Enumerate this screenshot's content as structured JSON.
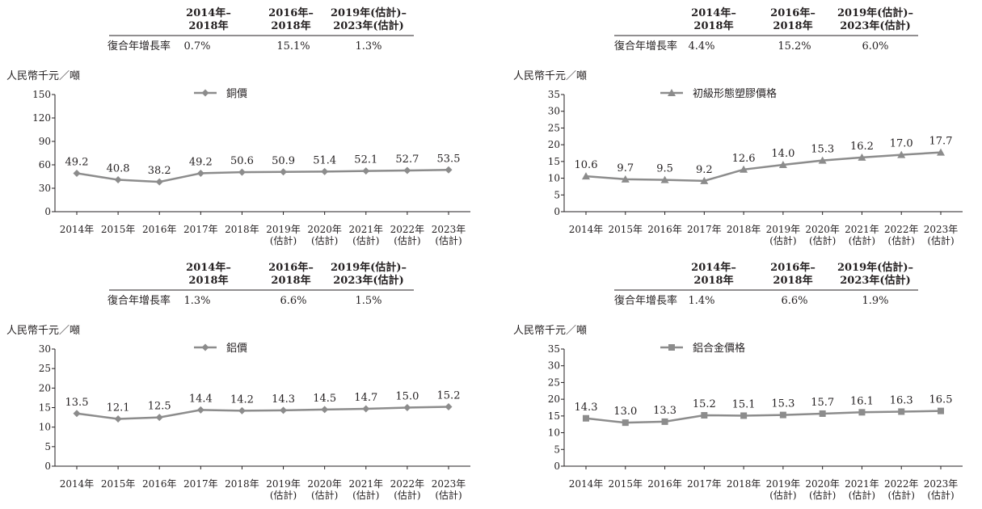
{
  "cagr_headers": [
    "2014年–\n2018年",
    "2016年–\n2018年",
    "2019年(估計)–\n2023年(估計)"
  ],
  "cagr_row_label": "復合年增長率",
  "x_categories": [
    "2014年",
    "2015年",
    "2016年",
    "2017年",
    "2018年",
    "2019年\n(估計)",
    "2020年\n(估計)",
    "2021年\n(估計)",
    "2022年\n(估計)",
    "2023年\n(估計)"
  ],
  "unit_label": "人民幣千元／噸",
  "colors": {
    "series": "#8c8c8c",
    "axis": "#231f20",
    "text": "#231f20"
  },
  "chart_data": [
    {
      "type": "line",
      "cagr": [
        "0.7%",
        "15.1%",
        "1.3%"
      ],
      "legend": "銅價",
      "marker": "diamond",
      "ylabel": "人民幣千元／噸",
      "ylim": [
        0,
        150
      ],
      "yticks": [
        0,
        30,
        60,
        90,
        120,
        150
      ],
      "values": [
        49.2,
        40.8,
        38.2,
        49.2,
        50.6,
        50.9,
        51.4,
        52.1,
        52.7,
        53.5
      ],
      "value_labels": [
        "49.2",
        "40.8",
        "38.2",
        "49.2",
        "50.6",
        "50.9",
        "51.4",
        "52.1",
        "52.7",
        "53.5"
      ]
    },
    {
      "type": "line",
      "cagr": [
        "4.4%",
        "15.2%",
        "6.0%"
      ],
      "legend": "初級形態塑膠價格",
      "marker": "triangle",
      "ylabel": "人民幣千元／噸",
      "ylim": [
        0,
        35
      ],
      "yticks": [
        0,
        5,
        10,
        15,
        20,
        25,
        30,
        35
      ],
      "values": [
        10.6,
        9.7,
        9.5,
        9.2,
        12.6,
        14.0,
        15.3,
        16.2,
        17.0,
        17.7
      ],
      "value_labels": [
        "10.6",
        "9.7",
        "9.5",
        "9.2",
        "12.6",
        "14.0",
        "15.3",
        "16.2",
        "17.0",
        "17.7"
      ]
    },
    {
      "type": "line",
      "cagr": [
        "1.3%",
        "6.6%",
        "1.5%"
      ],
      "legend": "鋁價",
      "marker": "diamond",
      "ylabel": "人民幣千元／噸",
      "ylim": [
        0,
        30
      ],
      "yticks": [
        0,
        5,
        10,
        15,
        20,
        25,
        30
      ],
      "values": [
        13.5,
        12.1,
        12.5,
        14.4,
        14.2,
        14.3,
        14.5,
        14.7,
        15.0,
        15.2
      ],
      "value_labels": [
        "13.5",
        "12.1",
        "12.5",
        "14.4",
        "14.2",
        "14.3",
        "14.5",
        "14.7",
        "15.0",
        "15.2"
      ]
    },
    {
      "type": "line",
      "cagr": [
        "1.4%",
        "6.6%",
        "1.9%"
      ],
      "legend": "鋁合金價格",
      "marker": "square",
      "ylabel": "人民幣千元／噸",
      "ylim": [
        0,
        35
      ],
      "yticks": [
        0,
        5,
        10,
        15,
        20,
        25,
        30,
        35
      ],
      "values": [
        14.3,
        13.0,
        13.3,
        15.2,
        15.1,
        15.3,
        15.7,
        16.1,
        16.3,
        16.5
      ],
      "value_labels": [
        "14.3",
        "13.0",
        "13.3",
        "15.2",
        "15.1",
        "15.3",
        "15.7",
        "16.1",
        "16.3",
        "16.5"
      ]
    }
  ]
}
